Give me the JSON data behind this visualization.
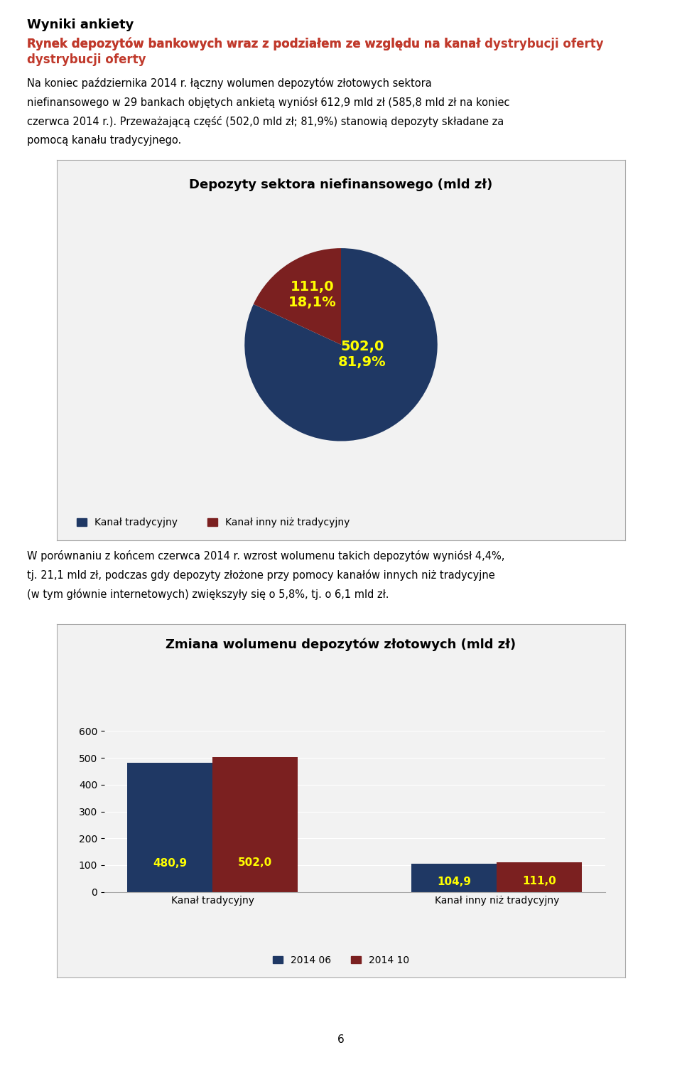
{
  "page_title": "Wyniki ankiety",
  "subtitle": "Rynek depozytów bankowych wraz z podziałem ze względu na kanał dystrybucji oferty",
  "text1_line1": "Na koniec października 2014 r. łączny wolumen depozytów złotowych sektora",
  "text1_line2": "niefinansowego w 29 bankach objętych ankietą wyniósł 612,9 mld zł (585,8 mld zł na koniec",
  "text1_line3": "czerwca 2014 r.). Przeważającą część (502,0 mld zł; 81,9%) stanowią depozyty składane za",
  "text1_line4": "pomocą kanału tradycyjnego.",
  "pie_title": "Depozyty sektora niefinansowego (mld zł)",
  "pie_values": [
    502.0,
    111.0
  ],
  "pie_colors": [
    "#1F3864",
    "#7B2020"
  ],
  "pie_legend": [
    "Kanał tradycyjny",
    "Kanał inny niż tradycyjny"
  ],
  "pie_label_large": "502,0\n81,9%",
  "pie_label_small": "111,0\n18,1%",
  "text2_line1": "W porównaniu z końcem czerwca 2014 r. wzrost wolumenu takich depozytów wyniósł 4,4%,",
  "text2_line2": "tj. 21,1 mld zł, podczas gdy depozyty złożone przy pomocy kanałów innych niż tradycyjne",
  "text2_line3": "(w tym głównie internetowych) zwiększyły się o 5,8%, tj. o 6,1 mld zł.",
  "bar_title": "Zmiana wolumenu depozytów złotowych (mld zł)",
  "bar_categories": [
    "Kanał tradycyjny",
    "Kanał inny niż tradycyjny"
  ],
  "bar_2014_06": [
    480.9,
    104.9
  ],
  "bar_2014_10": [
    502.0,
    111.0
  ],
  "bar_color_06": "#1F3864",
  "bar_color_10": "#7B2020",
  "bar_ylim": [
    0,
    600
  ],
  "bar_yticks": [
    0,
    100,
    200,
    300,
    400,
    500,
    600
  ],
  "bar_legend": [
    "2014 06",
    "2014 10"
  ],
  "label_color": "#FFFF00",
  "chart_bg": "#F2F2F2",
  "chart_border": "#AAAAAA",
  "page_number": "6"
}
